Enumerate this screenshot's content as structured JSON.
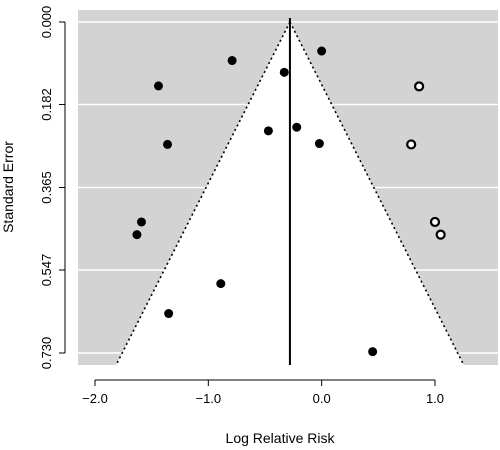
{
  "chart_data": {
    "type": "scatter",
    "title": "",
    "xlabel": "Log Relative Risk",
    "ylabel": "Standard Error",
    "xlim": [
      -2.2,
      1.55
    ],
    "ylim": [
      0.73,
      0.0
    ],
    "y_reversed": true,
    "xticks": [
      -2.0,
      -1.0,
      0.0,
      1.0
    ],
    "xtick_labels": [
      "−2.0",
      "−1.0",
      "0.0",
      "1.0"
    ],
    "yticks": [
      0.0,
      0.182,
      0.365,
      0.547,
      0.73
    ],
    "ytick_labels": [
      "0.000",
      "0.182",
      "0.365",
      "0.547",
      "0.730"
    ],
    "grid": "horizontal, white lines on grey",
    "background_color": "#d3d3d3",
    "funnel": {
      "center": -0.28,
      "bottom_se": 0.73,
      "bottom_left": -1.76,
      "bottom_right": 1.2
    },
    "series": [
      {
        "marker": "filled",
        "points": [
          {
            "x": 0.0,
            "y": 0.064
          },
          {
            "x": -0.79,
            "y": 0.085
          },
          {
            "x": -0.33,
            "y": 0.111
          },
          {
            "x": -1.44,
            "y": 0.141
          },
          {
            "x": -0.22,
            "y": 0.232
          },
          {
            "x": -0.47,
            "y": 0.24
          },
          {
            "x": -1.36,
            "y": 0.27
          },
          {
            "x": -0.02,
            "y": 0.268
          },
          {
            "x": -1.59,
            "y": 0.441
          },
          {
            "x": -1.63,
            "y": 0.469
          },
          {
            "x": -0.89,
            "y": 0.577
          },
          {
            "x": -1.35,
            "y": 0.643
          },
          {
            "x": 0.45,
            "y": 0.727
          }
        ]
      },
      {
        "marker": "open",
        "points": [
          {
            "x": 0.86,
            "y": 0.142
          },
          {
            "x": 0.79,
            "y": 0.27
          },
          {
            "x": 1.0,
            "y": 0.441
          },
          {
            "x": 1.05,
            "y": 0.469
          }
        ]
      }
    ]
  }
}
